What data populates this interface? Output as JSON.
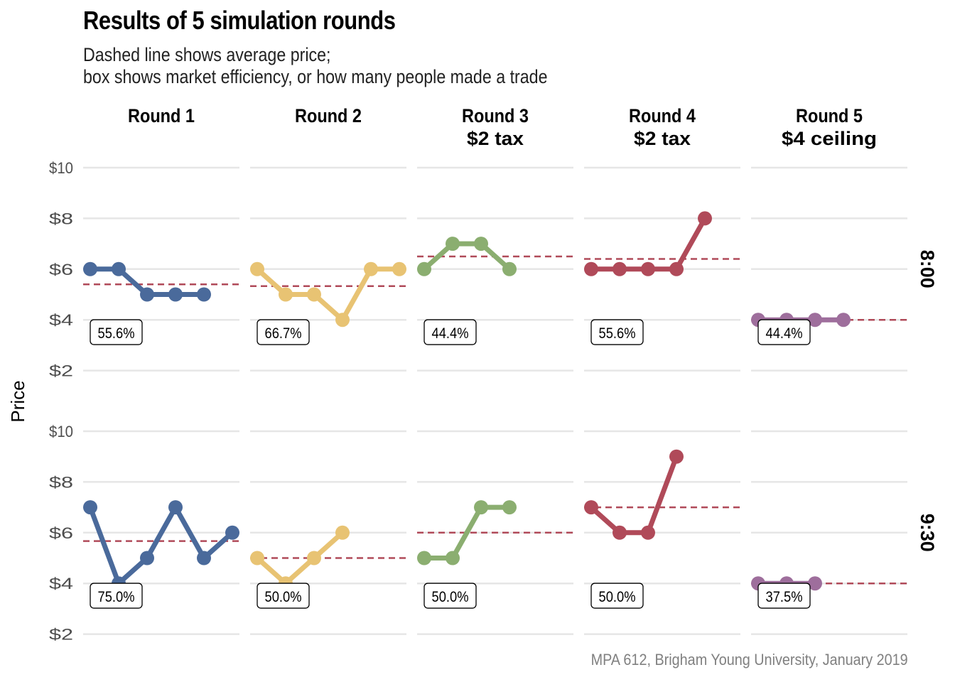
{
  "title": "Results of 5 simulation rounds",
  "subtitle_lines": [
    "Dashed line shows average price;",
    "box shows market efficiency, or how many people made a trade"
  ],
  "caption": "MPA 612, Brigham Young University, January 2019",
  "colors": {
    "round_1": "#4A6A9B",
    "round_2": "#E8C373",
    "round_3": "#8BAE70",
    "round_4": "#B04A59",
    "round_5": "#9E6E9C",
    "average_line": "#B04A59",
    "gridline": "#E6E6E6"
  },
  "chart_data": {
    "type": "line",
    "ylabel": "Price",
    "ylim": [
      2,
      10
    ],
    "yticks": [
      2,
      4,
      6,
      8,
      10
    ],
    "ytick_labels": [
      "$2",
      "$4",
      "$6",
      "$8",
      "$10"
    ],
    "columns": [
      {
        "title_lines": [
          "Round 1"
        ]
      },
      {
        "title_lines": [
          "Round 2"
        ]
      },
      {
        "title_lines": [
          "Round 3",
          "$2 tax"
        ]
      },
      {
        "title_lines": [
          "Round 4",
          "$2 tax"
        ]
      },
      {
        "title_lines": [
          "Round 5",
          "$4 ceiling"
        ]
      }
    ],
    "rows": [
      {
        "label": "8:00"
      },
      {
        "label": "9:30"
      }
    ],
    "panels": [
      {
        "row": 0,
        "col": 0,
        "prices": [
          6,
          6,
          5,
          5,
          5
        ],
        "average": 5.4,
        "efficiency": "55.6%"
      },
      {
        "row": 0,
        "col": 1,
        "prices": [
          6,
          5,
          5,
          4,
          6,
          6
        ],
        "average": 5.33,
        "efficiency": "66.7%"
      },
      {
        "row": 0,
        "col": 2,
        "prices": [
          6,
          7,
          7,
          6
        ],
        "average": 6.5,
        "efficiency": "44.4%"
      },
      {
        "row": 0,
        "col": 3,
        "prices": [
          6,
          6,
          6,
          6,
          8
        ],
        "average": 6.4,
        "efficiency": "55.6%"
      },
      {
        "row": 0,
        "col": 4,
        "prices": [
          4,
          4,
          4,
          4
        ],
        "average": 4,
        "efficiency": "44.4%"
      },
      {
        "row": 1,
        "col": 0,
        "prices": [
          7,
          4,
          5,
          7,
          5,
          6
        ],
        "average": 5.67,
        "efficiency": "75.0%"
      },
      {
        "row": 1,
        "col": 1,
        "prices": [
          5,
          4,
          5,
          6
        ],
        "average": 5,
        "efficiency": "50.0%"
      },
      {
        "row": 1,
        "col": 2,
        "prices": [
          5,
          5,
          7,
          7
        ],
        "average": 6,
        "efficiency": "50.0%"
      },
      {
        "row": 1,
        "col": 3,
        "prices": [
          7,
          6,
          6,
          9
        ],
        "average": 7,
        "efficiency": "50.0%"
      },
      {
        "row": 1,
        "col": 4,
        "prices": [
          4,
          4,
          4
        ],
        "average": 4,
        "efficiency": "37.5%"
      }
    ]
  }
}
